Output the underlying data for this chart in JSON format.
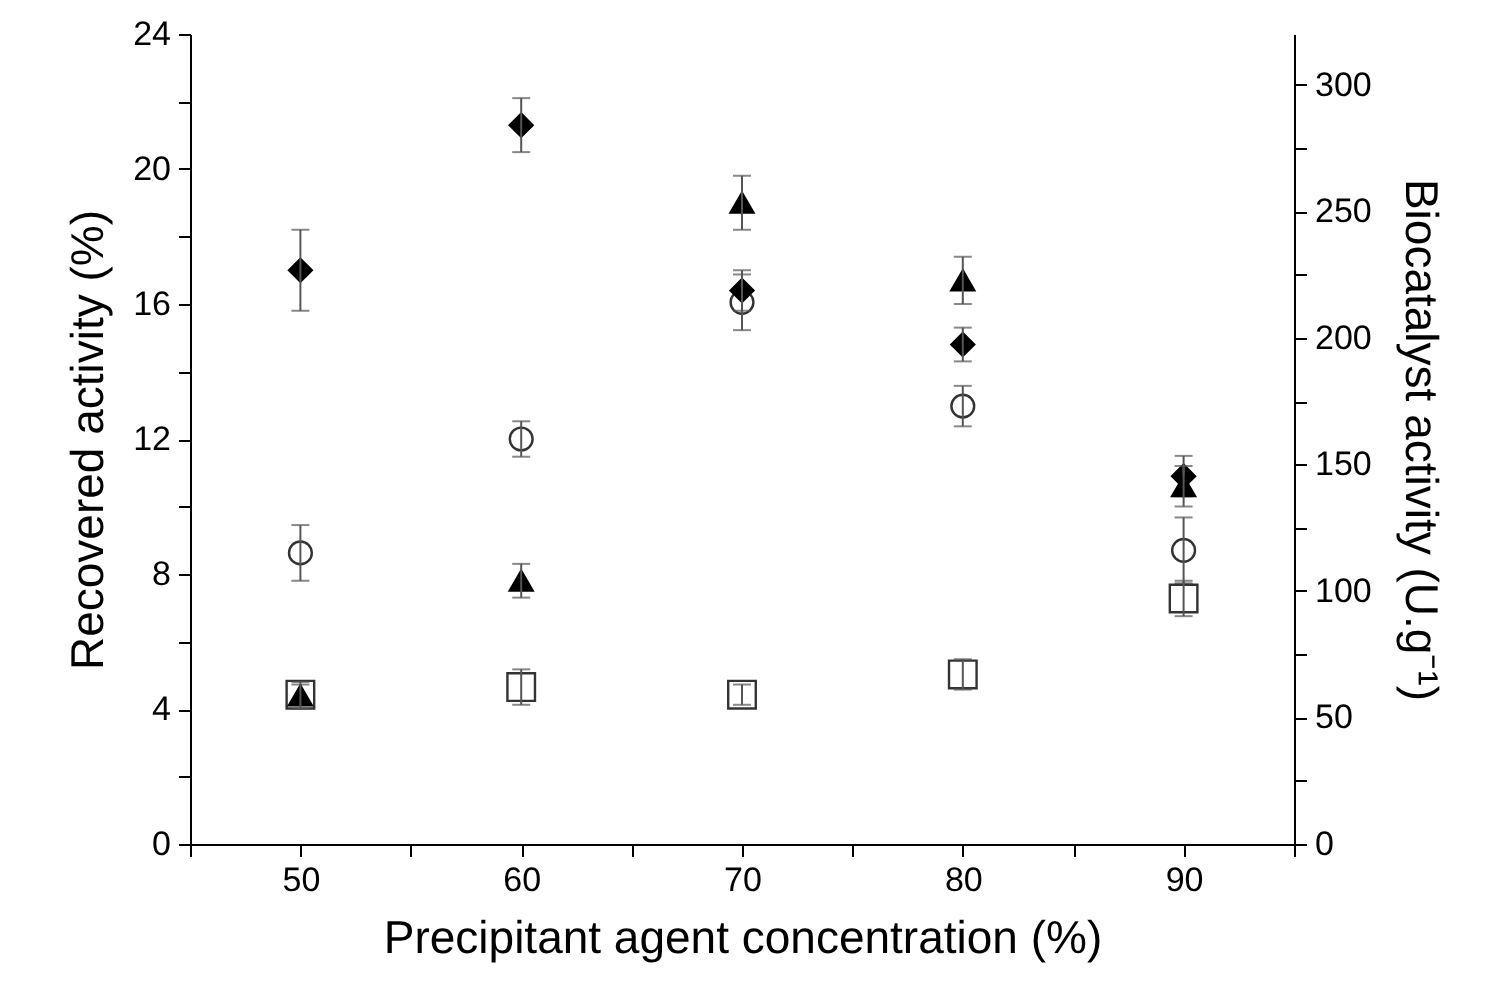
{
  "chart_data": {
    "type": "scatter",
    "xlabel": "Precipitant agent concentration  (%)",
    "ylabel": "Recovered activity (%)",
    "y2label": "Biocatalyst activity (U.g⁻¹)",
    "x": [
      50,
      60,
      70,
      80,
      90
    ],
    "xlim": [
      45,
      95
    ],
    "xticks": [
      {
        "value": 45,
        "label": null
      },
      50,
      {
        "value": 55,
        "label": null
      },
      60,
      {
        "value": 65,
        "label": null
      },
      70,
      {
        "value": 75,
        "label": null
      },
      80,
      {
        "value": 85,
        "label": null
      },
      90,
      {
        "value": 95,
        "label": null
      }
    ],
    "ylim": [
      0,
      24
    ],
    "yticks": [
      0,
      {
        "value": 2,
        "label": null
      },
      4,
      {
        "value": 6,
        "label": null
      },
      8,
      {
        "value": 10,
        "label": null
      },
      12,
      {
        "value": 14,
        "label": null
      },
      16,
      {
        "value": 18,
        "label": null
      },
      20,
      {
        "value": 22,
        "label": null
      },
      24
    ],
    "y2lim": [
      0,
      320
    ],
    "y2ticks": [
      0,
      {
        "value": 25,
        "label": null
      },
      50,
      {
        "value": 75,
        "label": null
      },
      100,
      {
        "value": 125,
        "label": null
      },
      150,
      {
        "value": 175,
        "label": null
      },
      200,
      {
        "value": 225,
        "label": null
      },
      250,
      {
        "value": 275,
        "label": null
      },
      300
    ],
    "grid": false,
    "series": [
      {
        "color": "#000000",
        "marker": "diamond",
        "values": [
          17.0,
          21.3,
          16.4,
          14.8,
          10.9
        ],
        "errors": [
          1.2,
          0.8,
          0.6,
          0.5,
          0.6
        ]
      },
      {
        "color": "#000000",
        "marker": "triangle",
        "values": [
          4.4,
          7.8,
          19.0,
          16.7,
          10.6
        ],
        "errors": [
          0.4,
          0.5,
          0.8,
          0.7,
          0.6
        ]
      },
      {
        "color": "#333333",
        "marker": "circle",
        "axis": "y2",
        "values": [
          115,
          160,
          214,
          173,
          116
        ],
        "errors": [
          11,
          7,
          11,
          8,
          13
        ]
      },
      {
        "color": "#333333",
        "marker": "square",
        "axis": "y2",
        "values": [
          59,
          62,
          59,
          67,
          97
        ],
        "errors": [
          4,
          7,
          4,
          6,
          7
        ]
      }
    ]
  }
}
